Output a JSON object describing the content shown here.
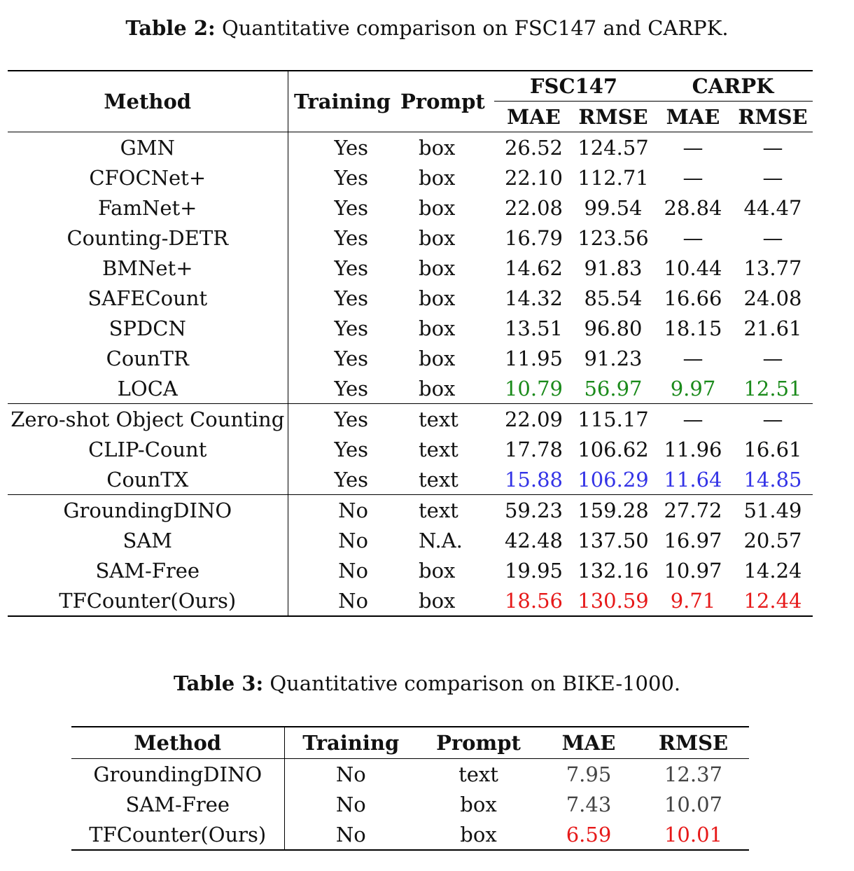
{
  "table2": {
    "caption_label": "Table 2:",
    "caption_text": "Quantitative comparison on FSC147 and CARPK.",
    "headers": {
      "method": "Method",
      "training": "Training",
      "prompt": "Prompt",
      "fsc147": "FSC147",
      "carpk": "CARPK",
      "mae": "MAE",
      "rmse": "RMSE"
    },
    "colors": {
      "green": "#1a8a1a",
      "blue": "#3333e6",
      "red": "#e61919"
    },
    "rows": [
      {
        "method": "GMN",
        "training": "Yes",
        "prompt": "box",
        "fsc_mae": "26.52",
        "fsc_rmse": "124.57",
        "carpk_mae": "—",
        "carpk_rmse": "—",
        "color": ""
      },
      {
        "method": "CFOCNet+",
        "training": "Yes",
        "prompt": "box",
        "fsc_mae": "22.10",
        "fsc_rmse": "112.71",
        "carpk_mae": "—",
        "carpk_rmse": "—",
        "color": ""
      },
      {
        "method": "FamNet+",
        "training": "Yes",
        "prompt": "box",
        "fsc_mae": "22.08",
        "fsc_rmse": "99.54",
        "carpk_mae": "28.84",
        "carpk_rmse": "44.47",
        "color": ""
      },
      {
        "method": "Counting-DETR",
        "training": "Yes",
        "prompt": "box",
        "fsc_mae": "16.79",
        "fsc_rmse": "123.56",
        "carpk_mae": "—",
        "carpk_rmse": "—",
        "color": ""
      },
      {
        "method": "BMNet+",
        "training": "Yes",
        "prompt": "box",
        "fsc_mae": "14.62",
        "fsc_rmse": "91.83",
        "carpk_mae": "10.44",
        "carpk_rmse": "13.77",
        "color": ""
      },
      {
        "method": "SAFECount",
        "training": "Yes",
        "prompt": "box",
        "fsc_mae": "14.32",
        "fsc_rmse": "85.54",
        "carpk_mae": "16.66",
        "carpk_rmse": "24.08",
        "color": ""
      },
      {
        "method": "SPDCN",
        "training": "Yes",
        "prompt": "box",
        "fsc_mae": "13.51",
        "fsc_rmse": "96.80",
        "carpk_mae": "18.15",
        "carpk_rmse": "21.61",
        "color": ""
      },
      {
        "method": "CounTR",
        "training": "Yes",
        "prompt": "box",
        "fsc_mae": "11.95",
        "fsc_rmse": "91.23",
        "carpk_mae": "—",
        "carpk_rmse": "—",
        "color": ""
      },
      {
        "method": "LOCA",
        "training": "Yes",
        "prompt": "box",
        "fsc_mae": "10.79",
        "fsc_rmse": "56.97",
        "carpk_mae": "9.97",
        "carpk_rmse": "12.51",
        "color": "green"
      },
      {
        "method": "Zero-shot Object Counting",
        "training": "Yes",
        "prompt": "text",
        "fsc_mae": "22.09",
        "fsc_rmse": "115.17",
        "carpk_mae": "—",
        "carpk_rmse": "—",
        "color": "",
        "group_start": true
      },
      {
        "method": "CLIP-Count",
        "training": "Yes",
        "prompt": "text",
        "fsc_mae": "17.78",
        "fsc_rmse": "106.62",
        "carpk_mae": "11.96",
        "carpk_rmse": "16.61",
        "color": ""
      },
      {
        "method": "CounTX",
        "training": "Yes",
        "prompt": "text",
        "fsc_mae": "15.88",
        "fsc_rmse": "106.29",
        "carpk_mae": "11.64",
        "carpk_rmse": "14.85",
        "color": "blue"
      },
      {
        "method": "GroundingDINO",
        "training": "No",
        "prompt": "text",
        "fsc_mae": "59.23",
        "fsc_rmse": "159.28",
        "carpk_mae": "27.72",
        "carpk_rmse": "51.49",
        "color": "",
        "group_start": true
      },
      {
        "method": "SAM",
        "training": "No",
        "prompt": "N.A.",
        "fsc_mae": "42.48",
        "fsc_rmse": "137.50",
        "carpk_mae": "16.97",
        "carpk_rmse": "20.57",
        "color": ""
      },
      {
        "method": "SAM-Free",
        "training": "No",
        "prompt": "box",
        "fsc_mae": "19.95",
        "fsc_rmse": "132.16",
        "carpk_mae": "10.97",
        "carpk_rmse": "14.24",
        "color": ""
      },
      {
        "method": "TFCounter(Ours)",
        "training": "No",
        "prompt": "box",
        "fsc_mae": "18.56",
        "fsc_rmse": "130.59",
        "carpk_mae": "9.71",
        "carpk_rmse": "12.44",
        "color": "red"
      }
    ]
  },
  "table3": {
    "caption_label": "Table 3:",
    "caption_text": "Quantitative comparison on BIKE-1000.",
    "headers": {
      "method": "Method",
      "training": "Training",
      "prompt": "Prompt",
      "mae": "MAE",
      "rmse": "RMSE"
    },
    "rows": [
      {
        "method": "GroundingDINO",
        "training": "No",
        "prompt": "text",
        "mae": "7.95",
        "rmse": "12.37",
        "color": ""
      },
      {
        "method": "SAM-Free",
        "training": "No",
        "prompt": "box",
        "mae": "7.43",
        "rmse": "10.07",
        "color": ""
      },
      {
        "method": "TFCounter(Ours)",
        "training": "No",
        "prompt": "box",
        "mae": "6.59",
        "rmse": "10.01",
        "color": "red"
      }
    ]
  }
}
